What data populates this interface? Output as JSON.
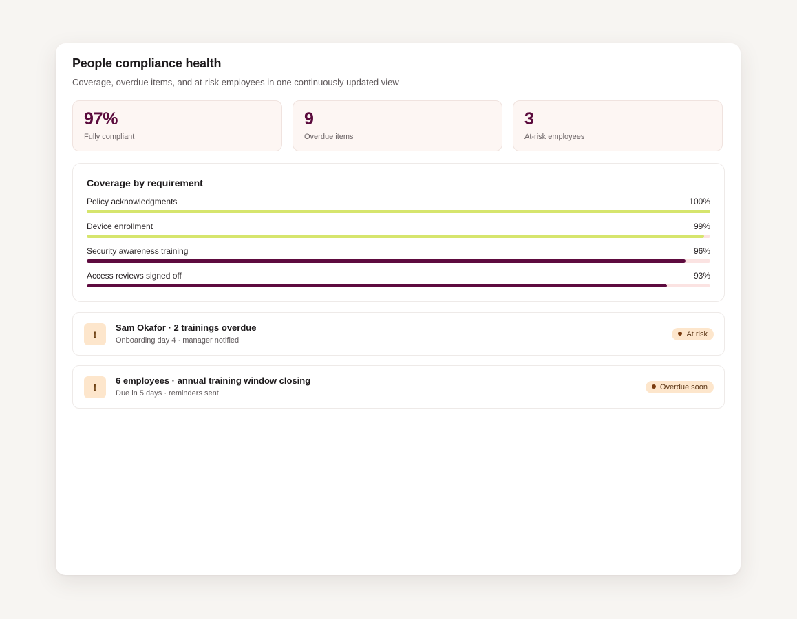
{
  "header": {
    "title": "People compliance health",
    "subtitle": "Coverage, overdue items, and at-risk employees in one continuously updated view"
  },
  "stats": [
    {
      "value": "97%",
      "label": "Fully compliant"
    },
    {
      "value": "9",
      "label": "Overdue items"
    },
    {
      "value": "3",
      "label": "At-risk employees"
    }
  ],
  "coverage": {
    "title": "Coverage by requirement",
    "items": [
      {
        "label": "Policy acknowledgments",
        "percent_text": "100%",
        "percent": 100,
        "color": "#d6e56d"
      },
      {
        "label": "Device enrollment",
        "percent_text": "99%",
        "percent": 99,
        "color": "#d6e56d"
      },
      {
        "label": "Security awareness training",
        "percent_text": "96%",
        "percent": 96,
        "color": "#5e0b3f"
      },
      {
        "label": "Access reviews signed off",
        "percent_text": "93%",
        "percent": 93,
        "color": "#5e0b3f"
      }
    ]
  },
  "alerts": [
    {
      "icon": "exclamation-icon",
      "icon_glyph": "!",
      "title": "Sam Okafor · 2 trainings overdue",
      "subtitle": "Onboarding day 4 · manager notified",
      "badge": "At risk"
    },
    {
      "icon": "exclamation-icon",
      "icon_glyph": "!",
      "title": "6 employees · annual training window closing",
      "subtitle": "Due in 5 days · reminders sent",
      "badge": "Overdue soon"
    }
  ],
  "colors": {
    "accent": "#5e0b3f",
    "complete": "#d6e56d",
    "track": "#fbe3e2",
    "badge_bg": "#fde6cc",
    "stat_bg": "#fdf6f3"
  }
}
